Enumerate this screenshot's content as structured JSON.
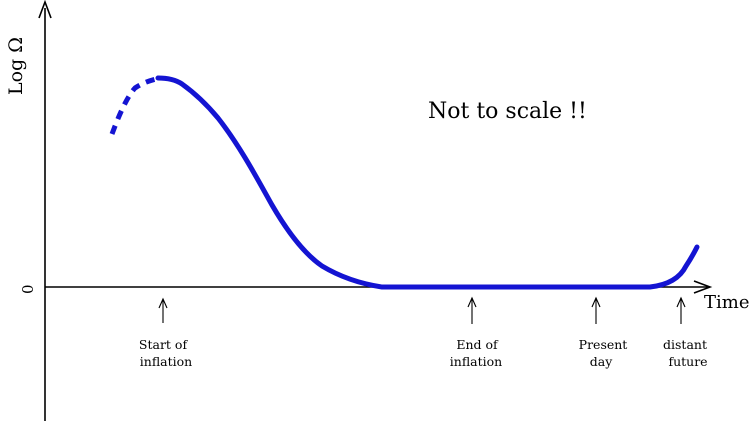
{
  "axes": {
    "y_label": "Log Ω",
    "x_label": "Time",
    "zero_label": "0"
  },
  "annotation": "Not to scale !!",
  "markers": [
    {
      "id": "start-of-inflation",
      "lines": [
        "Start of",
        "inflation"
      ]
    },
    {
      "id": "end-of-inflation",
      "lines": [
        "End of",
        "inflation"
      ]
    },
    {
      "id": "present-day",
      "lines": [
        "Present",
        "day"
      ]
    },
    {
      "id": "distant-future",
      "lines": [
        "distant",
        "future"
      ]
    }
  ],
  "colors": {
    "curve": "#1414d2",
    "axes": "#000000",
    "background": "#ffffff"
  },
  "curve_style": {
    "early_segment": "dashed",
    "main_segment": "solid"
  }
}
